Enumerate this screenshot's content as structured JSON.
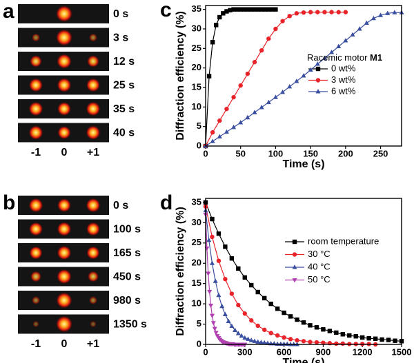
{
  "panels": [
    {
      "letter": "a",
      "rows": [
        "0 s",
        "3 s",
        "12 s",
        "25 s",
        "35 s",
        "40 s"
      ],
      "orders": [
        "-1",
        "0",
        "+1"
      ]
    },
    {
      "letter": "b",
      "rows": [
        "0 s",
        "100 s",
        "165 s",
        "450 s",
        "980 s",
        "1350 s"
      ],
      "orders": [
        "-1",
        "0",
        "+1"
      ]
    }
  ],
  "chart_data": [
    {
      "type": "line",
      "letter": "c",
      "xlabel": "Time (s)",
      "ylabel": "Diffraction efficiency (%)",
      "legend_title": "Racemic motor",
      "legend_title_bold": "M1",
      "xlim": [
        0,
        280
      ],
      "xticks": [
        0,
        50,
        100,
        150,
        200,
        250
      ],
      "ylim": [
        0,
        36
      ],
      "yticks": [
        0,
        5,
        10,
        15,
        20,
        25,
        30,
        35
      ],
      "series": [
        {
          "name": "0 wt%",
          "color": "#000000",
          "marker": "square",
          "x": [
            0,
            5,
            10,
            15,
            20,
            25,
            30,
            35,
            40,
            45,
            50,
            55,
            60,
            65,
            70,
            75,
            80,
            85,
            90,
            95,
            100
          ],
          "values": [
            0,
            17.9,
            26.6,
            31.0,
            33.0,
            34.0,
            34.5,
            34.8,
            35,
            35,
            35,
            35,
            35,
            35,
            35,
            35,
            35,
            35,
            35,
            35,
            35
          ]
        },
        {
          "name": "3 wt%",
          "color": "#e8232a",
          "marker": "circle",
          "x": [
            0,
            10,
            20,
            30,
            40,
            50,
            60,
            70,
            80,
            90,
            100,
            110,
            120,
            130,
            140,
            150,
            160,
            170,
            180,
            190,
            200
          ],
          "values": [
            0,
            3.5,
            6.5,
            9.5,
            12.5,
            15.5,
            18.5,
            21.5,
            24.5,
            27.5,
            30,
            32,
            33.3,
            34,
            34.2,
            34.3,
            34.3,
            34.3,
            34.3,
            34.3,
            34.3
          ]
        },
        {
          "name": "6 wt%",
          "color": "#3a4fa0",
          "marker": "triangle-up",
          "x": [
            0,
            10,
            20,
            30,
            40,
            50,
            60,
            70,
            80,
            90,
            100,
            110,
            120,
            130,
            140,
            150,
            160,
            170,
            180,
            190,
            200,
            210,
            220,
            230,
            240,
            250,
            260,
            270,
            280
          ],
          "values": [
            0,
            1.2,
            2.4,
            3.6,
            4.8,
            6,
            7.3,
            8.6,
            9.9,
            11.2,
            12.5,
            13.8,
            15.2,
            16.6,
            18,
            19.5,
            21,
            22.5,
            24,
            25.5,
            27,
            28.5,
            30,
            31.5,
            32.7,
            33.5,
            34,
            34.2,
            34.2
          ]
        }
      ]
    },
    {
      "type": "line",
      "letter": "d",
      "xlabel": "Time (s)",
      "ylabel": "Diffraction efficiency (%)",
      "xlim": [
        0,
        1500
      ],
      "xticks": [
        0,
        300,
        600,
        900,
        1200,
        1500
      ],
      "ylim": [
        0,
        36
      ],
      "yticks": [
        0,
        5,
        10,
        15,
        20,
        25,
        30,
        35
      ],
      "series": [
        {
          "name": "room temperature",
          "color": "#000000",
          "marker": "square",
          "x": [
            0,
            50,
            100,
            150,
            200,
            250,
            300,
            350,
            400,
            450,
            500,
            550,
            600,
            650,
            700,
            750,
            800,
            850,
            900,
            950,
            1000,
            1050,
            1100,
            1150,
            1200,
            1250,
            1300,
            1350,
            1400,
            1450,
            1500
          ],
          "values": [
            35,
            30.9,
            27.3,
            24.1,
            21.2,
            18.7,
            16.5,
            14.6,
            12.9,
            11.4,
            10.0,
            8.8,
            7.8,
            6.9,
            6.1,
            5.4,
            4.7,
            4.2,
            3.7,
            3.3,
            2.9,
            2.5,
            2.2,
            2.0,
            1.7,
            1.5,
            1.4,
            1.2,
            1.1,
            0.9,
            0.8
          ]
        },
        {
          "name": "30 °C",
          "color": "#e8232a",
          "marker": "circle",
          "x": [
            0,
            50,
            100,
            150,
            200,
            250,
            300,
            350,
            400,
            450,
            500,
            550,
            600,
            650,
            700,
            750,
            800,
            850,
            900,
            950,
            1000,
            1050,
            1100,
            1150,
            1200,
            1250,
            1300
          ],
          "values": [
            34,
            26.5,
            20.6,
            16.1,
            12.5,
            9.7,
            7.6,
            5.9,
            4.6,
            3.6,
            2.8,
            2.2,
            1.7,
            1.3,
            1.0,
            0.8,
            0.6,
            0.5,
            0.4,
            0.3,
            0.2,
            0.2,
            0.1,
            0.1,
            0.1,
            0.1,
            0
          ]
        },
        {
          "name": "40 °C",
          "color": "#3a4fa0",
          "marker": "triangle-up",
          "x": [
            0,
            25,
            50,
            75,
            100,
            125,
            150,
            175,
            200,
            225,
            250,
            275,
            300,
            325,
            350,
            375,
            400,
            425,
            450,
            475,
            500,
            525,
            550,
            575,
            600,
            625,
            650,
            675,
            700
          ],
          "values": [
            33,
            25.7,
            20,
            15.6,
            12.1,
            9.4,
            7.4,
            5.7,
            4.5,
            3.5,
            2.7,
            2.1,
            1.6,
            1.3,
            1.0,
            0.8,
            0.6,
            0.5,
            0.4,
            0.3,
            0.2,
            0.2,
            0.1,
            0.1,
            0.1,
            0.1,
            0,
            0,
            0
          ]
        },
        {
          "name": "50 °C",
          "color": "#b040b0",
          "marker": "triangle-down",
          "x": [
            0,
            10,
            20,
            30,
            40,
            50,
            60,
            70,
            80,
            90,
            100,
            110,
            120,
            130,
            140,
            150,
            160,
            170,
            180,
            190,
            200,
            210,
            220,
            230,
            240,
            250,
            260,
            270,
            280,
            290,
            300
          ],
          "values": [
            32,
            23.7,
            17.5,
            13,
            9.6,
            7.1,
            5.3,
            3.9,
            2.9,
            2.1,
            1.6,
            1.2,
            0.9,
            0.6,
            0.5,
            0.4,
            0.3,
            0.2,
            0.1,
            0.1,
            0.1,
            0.1,
            0,
            0,
            0,
            0,
            0,
            0,
            0,
            0,
            0
          ]
        }
      ]
    }
  ]
}
